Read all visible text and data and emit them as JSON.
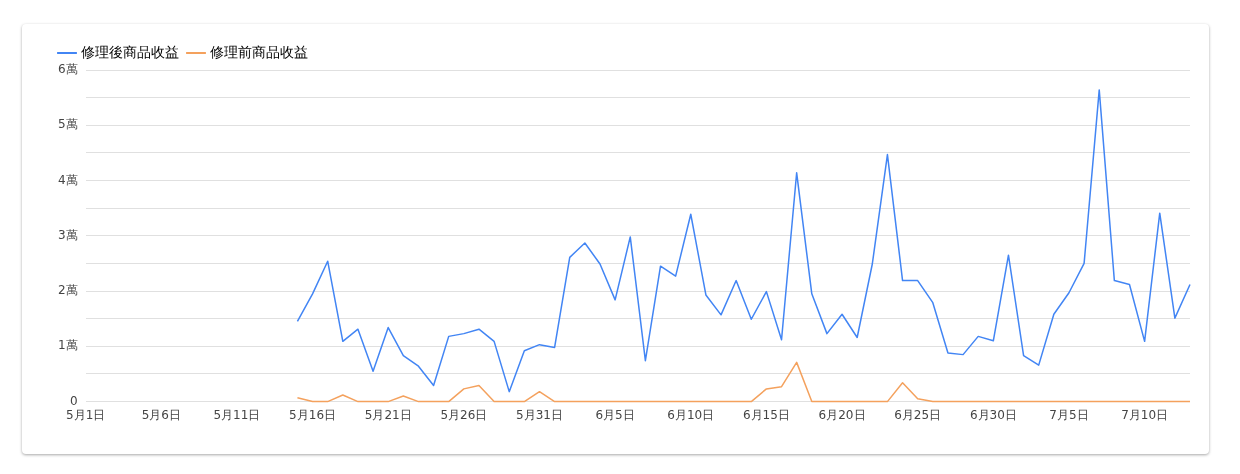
{
  "chart_data": {
    "type": "line",
    "x": [
      "--05-15",
      "--05-16",
      "--05-17",
      "--05-18",
      "--05-19",
      "--05-20",
      "--05-21",
      "--05-22",
      "--05-23",
      "--05-24",
      "--05-25",
      "--05-26",
      "--05-27",
      "--05-28",
      "--05-29",
      "--05-30",
      "--05-31",
      "--06-01",
      "--06-02",
      "--06-03",
      "--06-04",
      "--06-05",
      "--06-06",
      "--06-07",
      "--06-08",
      "--06-09",
      "--06-10",
      "--06-11",
      "--06-12",
      "--06-13",
      "--06-14",
      "--06-15",
      "--06-16",
      "--06-17",
      "--06-18",
      "--06-19",
      "--06-20",
      "--06-21",
      "--06-22",
      "--06-23",
      "--06-24",
      "--06-25",
      "--06-26",
      "--06-27",
      "--06-28",
      "--06-29",
      "--06-30",
      "--07-01",
      "--07-02",
      "--07-03",
      "--07-04",
      "--07-05",
      "--07-06",
      "--07-07",
      "--07-08",
      "--07-09",
      "--07-10",
      "--07-11",
      "--07-12",
      "--07-13"
    ],
    "series": [
      {
        "name": "修理後商品收益",
        "color": "#4285f4",
        "values": [
          1.45,
          1.95,
          2.54,
          1.09,
          1.31,
          0.55,
          1.34,
          0.83,
          0.64,
          0.29,
          1.18,
          1.23,
          1.31,
          1.09,
          0.18,
          0.92,
          1.03,
          0.98,
          2.61,
          2.87,
          2.49,
          1.84,
          2.98,
          0.74,
          2.45,
          2.27,
          3.39,
          1.93,
          1.57,
          2.19,
          1.49,
          1.99,
          1.12,
          4.14,
          1.95,
          1.23,
          1.58,
          1.16,
          2.49,
          4.47,
          2.19,
          2.19,
          1.79,
          0.88,
          0.85,
          1.18,
          1.1,
          2.65,
          0.83,
          0.66,
          1.58,
          1.97,
          2.5,
          5.64,
          2.19,
          2.12,
          1.09,
          3.41,
          1.51,
          2.12
        ]
      },
      {
        "name": "修理前商品收益",
        "color": "#f4a15d",
        "values": [
          0.07,
          0,
          0,
          0.12,
          0,
          0,
          0,
          0.1,
          0,
          0,
          0,
          0.23,
          0.29,
          0,
          0,
          0,
          0.18,
          0,
          0,
          0,
          0,
          0,
          0,
          0,
          0,
          0,
          0,
          0,
          0,
          0,
          0,
          0.23,
          0.27,
          0.71,
          0,
          0,
          0,
          0,
          0,
          0,
          0.34,
          0.05,
          0,
          0,
          0,
          0,
          0,
          0,
          0,
          0,
          0,
          0,
          0,
          0,
          0,
          0,
          0,
          0,
          0,
          0
        ]
      }
    ],
    "xlim": [
      "--05-01",
      "--07-13"
    ],
    "xticks": [
      {
        "value": "--05-01",
        "label": "5月1日"
      },
      {
        "value": "--05-06",
        "label": "5月6日"
      },
      {
        "value": "--05-11",
        "label": "5月11日"
      },
      {
        "value": "--05-16",
        "label": "5月16日"
      },
      {
        "value": "--05-21",
        "label": "5月21日"
      },
      {
        "value": "--05-26",
        "label": "5月26日"
      },
      {
        "value": "--05-31",
        "label": "5月31日"
      },
      {
        "value": "--06-05",
        "label": "6月5日"
      },
      {
        "value": "--06-10",
        "label": "6月10日"
      },
      {
        "value": "--06-15",
        "label": "6月15日"
      },
      {
        "value": "--06-20",
        "label": "6月20日"
      },
      {
        "value": "--06-25",
        "label": "6月25日"
      },
      {
        "value": "--06-30",
        "label": "6月30日"
      },
      {
        "value": "--07-05",
        "label": "7月5日"
      },
      {
        "value": "--07-10",
        "label": "7月10日"
      }
    ],
    "ylim": [
      0,
      6
    ],
    "yticks": [
      0,
      {
        "value": 0.5,
        "label": null
      },
      {
        "value": 1,
        "label": "1萬"
      },
      {
        "value": 1.5,
        "label": null
      },
      {
        "value": 2,
        "label": "2萬"
      },
      {
        "value": 2.5,
        "label": null
      },
      {
        "value": 3,
        "label": "3萬"
      },
      {
        "value": 3.5,
        "label": null
      },
      {
        "value": 4,
        "label": "4萬"
      },
      {
        "value": 4.5,
        "label": null
      },
      {
        "value": 5,
        "label": "5萬"
      },
      {
        "value": 5.5,
        "label": null
      },
      {
        "value": 6,
        "label": "6萬"
      }
    ],
    "grid": "y",
    "legend": "top left",
    "marker": "none",
    "line_style": "solid"
  }
}
